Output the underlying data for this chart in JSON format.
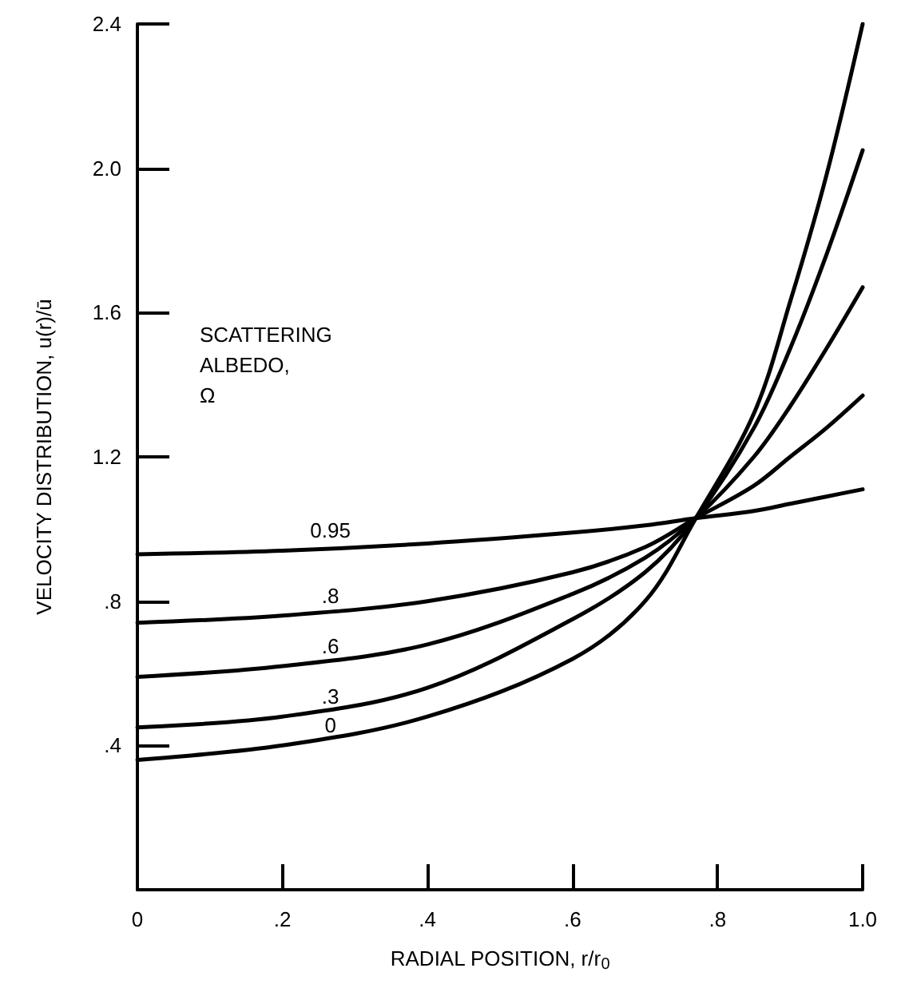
{
  "chart_data": {
    "type": "line",
    "xlabel": "RADIAL POSITION, r/r$_{0}$",
    "ylabel": "VELOCITY DISTRIBUTION, u(r)/ū",
    "legend_title": "SCATTERING ALBEDO, Ω",
    "x": [
      0,
      0.2,
      0.4,
      0.6,
      0.7,
      0.77,
      0.85,
      0.9,
      0.95,
      1.0
    ],
    "series": [
      {
        "name": "0.95",
        "color": "#000000",
        "values": [
          0.93,
          0.94,
          0.96,
          0.99,
          1.01,
          1.03,
          1.05,
          1.07,
          1.09,
          1.11
        ]
      },
      {
        "name": ".8",
        "color": "#000000",
        "values": [
          0.74,
          0.76,
          0.8,
          0.88,
          0.95,
          1.03,
          1.12,
          1.2,
          1.28,
          1.37
        ]
      },
      {
        "name": ".6",
        "color": "#000000",
        "values": [
          0.59,
          0.62,
          0.68,
          0.82,
          0.92,
          1.03,
          1.2,
          1.34,
          1.5,
          1.67
        ]
      },
      {
        "name": ".3",
        "color": "#000000",
        "values": [
          0.45,
          0.48,
          0.56,
          0.75,
          0.88,
          1.03,
          1.28,
          1.5,
          1.76,
          2.05
        ]
      },
      {
        "name": "0",
        "color": "#000000",
        "values": [
          0.36,
          0.4,
          0.48,
          0.64,
          0.8,
          1.03,
          1.32,
          1.63,
          1.98,
          2.4
        ]
      }
    ],
    "xlim": [
      0,
      1
    ],
    "ylim": [
      0,
      2.4
    ],
    "xticks": [
      0,
      {
        "value": 0.2,
        "label": ".2"
      },
      {
        "value": 0.4,
        "label": ".4"
      },
      {
        "value": 0.6,
        "label": ".6"
      },
      {
        "value": 0.8,
        "label": ".8"
      },
      {
        "value": 1,
        "label": "1.0"
      }
    ],
    "yticks": [
      {
        "value": 0.4,
        "label": ".4"
      },
      {
        "value": 0.8,
        "label": ".8"
      },
      1.2,
      1.6,
      {
        "value": 2,
        "label": "2.0"
      },
      2.4
    ],
    "grid": false,
    "legend": false,
    "marker": "none",
    "line_style": "solid"
  }
}
